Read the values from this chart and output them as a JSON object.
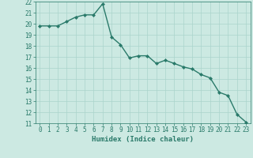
{
  "xlabel": "Humidex (Indice chaleur)",
  "x": [
    0,
    1,
    2,
    3,
    4,
    5,
    6,
    7,
    8,
    9,
    10,
    11,
    12,
    13,
    14,
    15,
    16,
    17,
    18,
    19,
    20,
    21,
    22,
    23
  ],
  "y": [
    19.8,
    19.8,
    19.8,
    20.2,
    20.6,
    20.8,
    20.8,
    21.8,
    18.8,
    18.1,
    16.9,
    17.1,
    17.1,
    16.4,
    16.7,
    16.4,
    16.1,
    15.9,
    15.4,
    15.1,
    13.8,
    13.5,
    11.8,
    11.1
  ],
  "ylim": [
    11,
    22
  ],
  "xlim": [
    -0.5,
    23.5
  ],
  "line_color": "#2a7a6a",
  "bg_color": "#cce9e2",
  "grid_color": "#aad4cc",
  "markersize": 2.0,
  "linewidth": 1.0,
  "yticks": [
    11,
    12,
    13,
    14,
    15,
    16,
    17,
    18,
    19,
    20,
    21,
    22
  ],
  "xticks": [
    0,
    1,
    2,
    3,
    4,
    5,
    6,
    7,
    8,
    9,
    10,
    11,
    12,
    13,
    14,
    15,
    16,
    17,
    18,
    19,
    20,
    21,
    22,
    23
  ],
  "tick_fontsize": 5.5,
  "xlabel_fontsize": 6.5
}
